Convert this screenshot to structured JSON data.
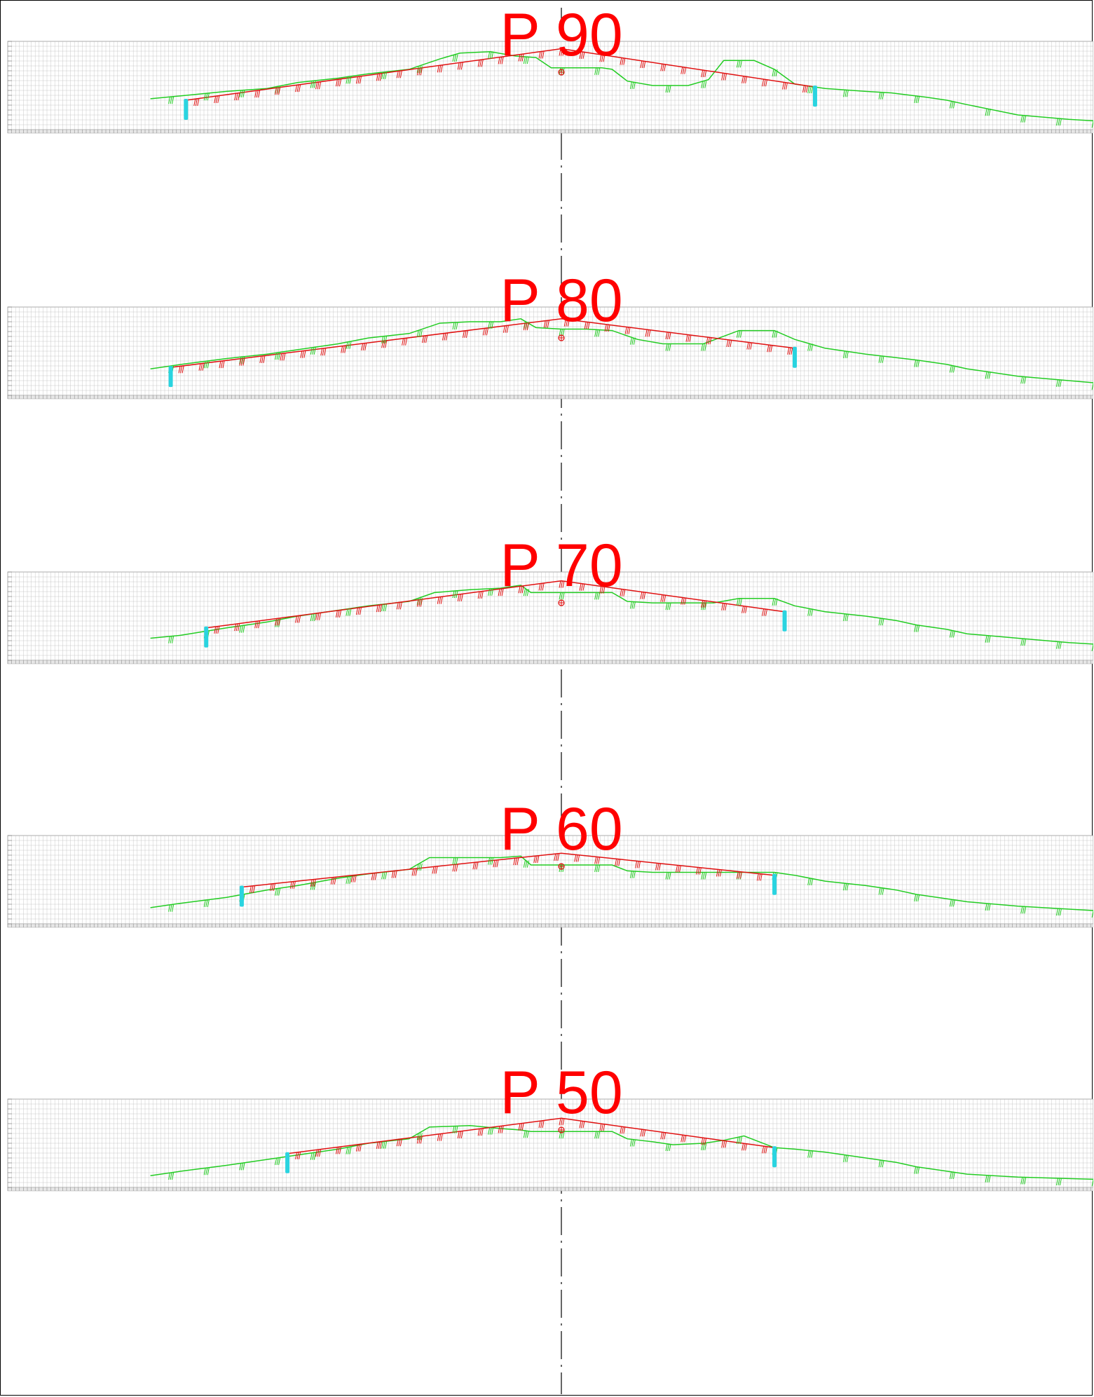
{
  "colors": {
    "design_line": "#e01010",
    "terrain_line": "#22cc22",
    "boundary_marker": "#2ad4e0",
    "axis_marker": "#e01010",
    "grid": "#bdbdbd",
    "centerline": "#000000",
    "label": "#ff0000"
  },
  "centerline": {
    "style": "dash-dot"
  },
  "sections": [
    {
      "label": "P 90",
      "terrain": [
        [
          -81,
          21
        ],
        [
          -75,
          23
        ],
        [
          -66,
          26
        ],
        [
          -58,
          28
        ],
        [
          -52,
          32
        ],
        [
          -44,
          35
        ],
        [
          -38,
          38
        ],
        [
          -30,
          41
        ],
        [
          -24,
          48
        ],
        [
          -20,
          52
        ],
        [
          -14,
          53
        ],
        [
          -9,
          50
        ],
        [
          -5,
          49
        ],
        [
          -2,
          42
        ],
        [
          0,
          42
        ],
        [
          8,
          42
        ],
        [
          10,
          41
        ],
        [
          13,
          33
        ],
        [
          18,
          30
        ],
        [
          25,
          30
        ],
        [
          29,
          34
        ],
        [
          32,
          47
        ],
        [
          38,
          47
        ],
        [
          42,
          41
        ],
        [
          46,
          31
        ],
        [
          52,
          28
        ],
        [
          60,
          26
        ],
        [
          65,
          25
        ],
        [
          72,
          22
        ],
        [
          76,
          20
        ],
        [
          80,
          17
        ],
        [
          90,
          10
        ],
        [
          100,
          7
        ],
        [
          110,
          5
        ],
        [
          120,
          3
        ],
        [
          128,
          3
        ]
      ],
      "design": [
        [
          -74,
          20
        ],
        [
          0,
          55
        ],
        [
          50,
          29
        ]
      ],
      "boundary_left": -74,
      "boundary_right": 50
    },
    {
      "label": "P 80",
      "terrain": [
        [
          -81,
          18
        ],
        [
          -75,
          21
        ],
        [
          -66,
          25
        ],
        [
          -58,
          28
        ],
        [
          -52,
          31
        ],
        [
          -44,
          35
        ],
        [
          -38,
          39
        ],
        [
          -30,
          42
        ],
        [
          -24,
          49
        ],
        [
          -18,
          50
        ],
        [
          -12,
          50
        ],
        [
          -8,
          52
        ],
        [
          -5,
          46
        ],
        [
          0,
          45
        ],
        [
          5,
          45
        ],
        [
          10,
          44
        ],
        [
          15,
          38
        ],
        [
          20,
          35
        ],
        [
          28,
          35
        ],
        [
          35,
          44
        ],
        [
          42,
          44
        ],
        [
          46,
          38
        ],
        [
          52,
          32
        ],
        [
          60,
          28
        ],
        [
          65,
          26
        ],
        [
          70,
          24
        ],
        [
          76,
          21
        ],
        [
          80,
          18
        ],
        [
          90,
          13
        ],
        [
          100,
          10
        ],
        [
          110,
          7
        ],
        [
          120,
          5
        ],
        [
          128,
          5
        ]
      ],
      "design": [
        [
          -77,
          19
        ],
        [
          0,
          52
        ],
        [
          46,
          32
        ]
      ],
      "boundary_left": -77,
      "boundary_right": 46
    },
    {
      "label": "P 70",
      "terrain": [
        [
          -81,
          15
        ],
        [
          -75,
          17
        ],
        [
          -66,
          22
        ],
        [
          -58,
          26
        ],
        [
          -52,
          30
        ],
        [
          -44,
          34
        ],
        [
          -38,
          37
        ],
        [
          -30,
          40
        ],
        [
          -25,
          46
        ],
        [
          -18,
          48
        ],
        [
          -12,
          49
        ],
        [
          -8,
          51
        ],
        [
          -6,
          46
        ],
        [
          0,
          46
        ],
        [
          6,
          46
        ],
        [
          10,
          46
        ],
        [
          13,
          40
        ],
        [
          18,
          39
        ],
        [
          30,
          39
        ],
        [
          35,
          42
        ],
        [
          42,
          42
        ],
        [
          46,
          37
        ],
        [
          52,
          33
        ],
        [
          60,
          30
        ],
        [
          66,
          27
        ],
        [
          70,
          24
        ],
        [
          76,
          21
        ],
        [
          80,
          18
        ],
        [
          90,
          15
        ],
        [
          100,
          12
        ],
        [
          110,
          10
        ],
        [
          120,
          9
        ],
        [
          128,
          9
        ]
      ],
      "design": [
        [
          -70,
          22
        ],
        [
          0,
          54
        ],
        [
          44,
          33
        ]
      ],
      "boundary_left": -70,
      "boundary_right": 44
    },
    {
      "label": "P 60",
      "terrain": [
        [
          -81,
          11
        ],
        [
          -75,
          14
        ],
        [
          -66,
          18
        ],
        [
          -58,
          23
        ],
        [
          -52,
          26
        ],
        [
          -44,
          31
        ],
        [
          -38,
          34
        ],
        [
          -30,
          37
        ],
        [
          -26,
          45
        ],
        [
          -18,
          45
        ],
        [
          -12,
          45
        ],
        [
          -8,
          46
        ],
        [
          -6,
          40
        ],
        [
          0,
          40
        ],
        [
          6,
          40
        ],
        [
          10,
          40
        ],
        [
          13,
          36
        ],
        [
          18,
          35
        ],
        [
          30,
          35
        ],
        [
          36,
          35
        ],
        [
          42,
          35
        ],
        [
          46,
          33
        ],
        [
          52,
          29
        ],
        [
          60,
          26
        ],
        [
          66,
          23
        ],
        [
          70,
          20
        ],
        [
          76,
          17
        ],
        [
          80,
          15
        ],
        [
          90,
          12
        ],
        [
          100,
          10
        ],
        [
          110,
          8
        ],
        [
          120,
          7
        ],
        [
          128,
          7
        ]
      ],
      "design": [
        [
          -63,
          25
        ],
        [
          0,
          48
        ],
        [
          42,
          33
        ]
      ],
      "boundary_left": -63,
      "boundary_right": 42
    },
    {
      "label": "P 50",
      "terrain": [
        [
          -81,
          8
        ],
        [
          -75,
          11
        ],
        [
          -66,
          15
        ],
        [
          -58,
          19
        ],
        [
          -52,
          22
        ],
        [
          -44,
          26
        ],
        [
          -38,
          30
        ],
        [
          -30,
          33
        ],
        [
          -26,
          41
        ],
        [
          -18,
          42
        ],
        [
          -12,
          40
        ],
        [
          -8,
          39
        ],
        [
          -6,
          38
        ],
        [
          0,
          38
        ],
        [
          6,
          38
        ],
        [
          10,
          38
        ],
        [
          13,
          33
        ],
        [
          18,
          31
        ],
        [
          22,
          29
        ],
        [
          28,
          30
        ],
        [
          32,
          32
        ],
        [
          36,
          35
        ],
        [
          42,
          27
        ],
        [
          46,
          26
        ],
        [
          52,
          24
        ],
        [
          60,
          20
        ],
        [
          66,
          17
        ],
        [
          70,
          14
        ],
        [
          76,
          11
        ],
        [
          80,
          9
        ],
        [
          90,
          7
        ],
        [
          100,
          6
        ],
        [
          110,
          5
        ],
        [
          120,
          4
        ],
        [
          128,
          4
        ]
      ],
      "design": [
        [
          -54,
          23
        ],
        [
          0,
          47
        ],
        [
          42,
          27
        ]
      ],
      "boundary_left": -54,
      "boundary_right": 42
    }
  ]
}
